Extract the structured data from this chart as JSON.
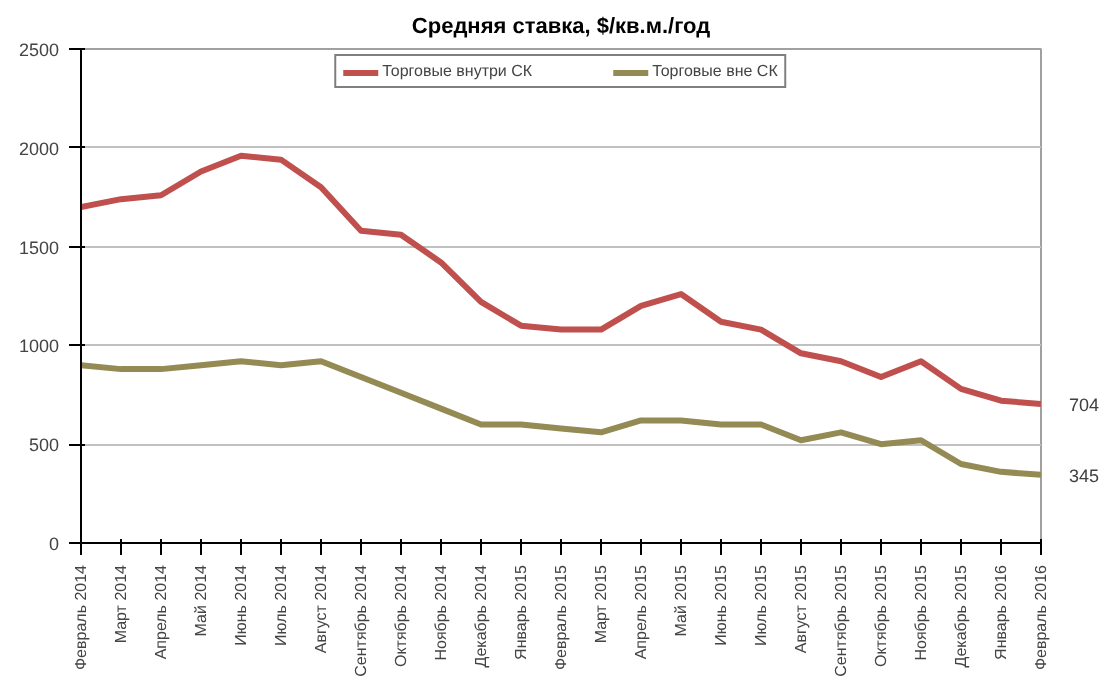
{
  "chart_data": {
    "type": "line",
    "title": "Средняя ставка, $/кв.м./год",
    "categories": [
      "Февраль 2014",
      "Март 2014",
      "Апрель 2014",
      "Май 2014",
      "Июнь 2014",
      "Июль 2014",
      "Август 2014",
      "Сентябрь 2014",
      "Октябрь 2014",
      "Ноябрь 2014",
      "Декабрь 2014",
      "Январь 2015",
      "Февраль 2015",
      "Март 2015",
      "Апрель 2015",
      "Май 2015",
      "Июнь 2015",
      "Июль 2015",
      "Август 2015",
      "Сентябрь 2015",
      "Октябрь 2015",
      "Ноябрь 2015",
      "Декабрь 2015",
      "Январь 2016",
      "Февраль 2016"
    ],
    "series": [
      {
        "name": "Торговые внутри СК",
        "color": "#c0504d",
        "values": [
          1700,
          1740,
          1760,
          1880,
          1960,
          1940,
          1800,
          1580,
          1560,
          1420,
          1220,
          1100,
          1080,
          1080,
          1200,
          1260,
          1120,
          1080,
          960,
          920,
          840,
          920,
          780,
          720,
          704
        ],
        "value_labels": [
          null,
          null,
          null,
          null,
          null,
          null,
          null,
          null,
          null,
          null,
          null,
          null,
          null,
          null,
          null,
          null,
          null,
          null,
          null,
          null,
          null,
          null,
          null,
          null,
          "704"
        ]
      },
      {
        "name": "Торговые вне СК",
        "color": "#948a54",
        "values": [
          900,
          880,
          880,
          900,
          920,
          900,
          920,
          840,
          760,
          680,
          600,
          600,
          580,
          560,
          620,
          620,
          600,
          600,
          520,
          560,
          500,
          520,
          400,
          360,
          345
        ],
        "value_labels": [
          null,
          null,
          null,
          null,
          null,
          null,
          null,
          null,
          null,
          null,
          null,
          null,
          null,
          null,
          null,
          null,
          null,
          null,
          null,
          null,
          null,
          null,
          null,
          null,
          "345"
        ]
      }
    ],
    "ylim": [
      0,
      2500
    ],
    "yticks": [
      0,
      500,
      1000,
      1500,
      2000,
      2500
    ],
    "grid": "y",
    "legend": "top",
    "marker": "none",
    "line_style": "solid"
  }
}
